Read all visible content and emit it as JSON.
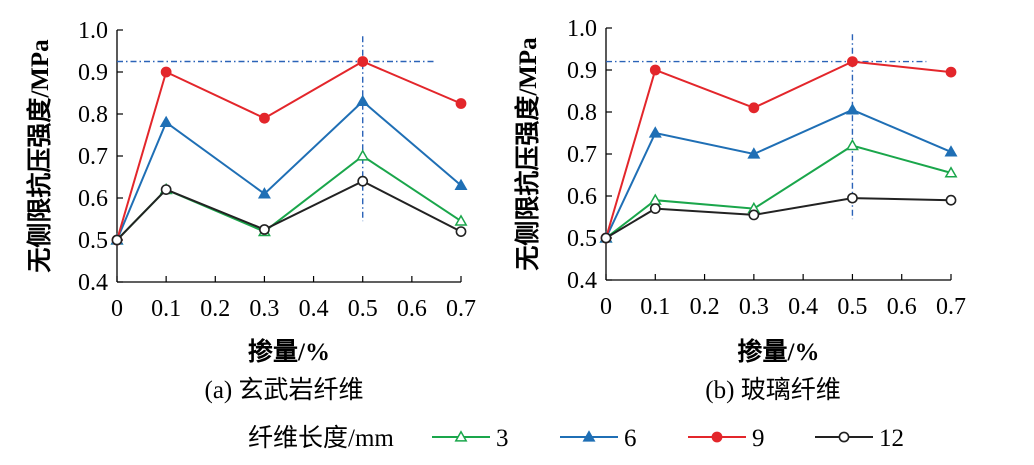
{
  "chart_data": [
    {
      "type": "line",
      "caption": "(a) 玄武岩纤维",
      "xlabel": "掺量/%",
      "ylabel": "无侧限抗压强度/MPa",
      "ylim": [
        0.4,
        1.0
      ],
      "x": [
        0,
        0.1,
        0.3,
        0.5,
        0.7
      ],
      "xticks": [
        "0",
        "0.1",
        "0.2",
        "0.3",
        "0.4",
        "0.5",
        "0.6",
        "0.7"
      ],
      "yticks": [
        "0.4",
        "0.5",
        "0.6",
        "0.7",
        "0.8",
        "0.9",
        "1.0"
      ],
      "ref_hline": 0.925,
      "ref_vline": 0.5,
      "series": [
        {
          "name": "3",
          "color": "#1aa64b",
          "marker": "triangle-open",
          "values": [
            0.5,
            0.62,
            0.52,
            0.7,
            0.545
          ]
        },
        {
          "name": "6",
          "color": "#1f6fb5",
          "marker": "triangle-filled",
          "values": [
            0.5,
            0.78,
            0.61,
            0.83,
            0.63
          ]
        },
        {
          "name": "9",
          "color": "#e3262b",
          "marker": "circle-filled",
          "values": [
            0.5,
            0.9,
            0.79,
            0.925,
            0.825
          ]
        },
        {
          "name": "12",
          "color": "#222222",
          "marker": "circle-open",
          "values": [
            0.5,
            0.62,
            0.525,
            0.64,
            0.52
          ]
        }
      ]
    },
    {
      "type": "line",
      "caption": "(b) 玻璃纤维",
      "xlabel": "掺量/%",
      "ylabel": "无侧限抗压强度/MPa",
      "ylim": [
        0.4,
        1.0
      ],
      "x": [
        0,
        0.1,
        0.3,
        0.5,
        0.7
      ],
      "xticks": [
        "0",
        "0.1",
        "0.2",
        "0.3",
        "0.4",
        "0.5",
        "0.6",
        "0.7"
      ],
      "yticks": [
        "0.4",
        "0.5",
        "0.6",
        "0.7",
        "0.8",
        "0.9",
        "1.0"
      ],
      "ref_hline": 0.92,
      "ref_vline": 0.5,
      "series": [
        {
          "name": "3",
          "color": "#1aa64b",
          "marker": "triangle-open",
          "values": [
            0.5,
            0.59,
            0.57,
            0.72,
            0.655
          ]
        },
        {
          "name": "6",
          "color": "#1f6fb5",
          "marker": "triangle-filled",
          "values": [
            0.5,
            0.75,
            0.7,
            0.805,
            0.705
          ]
        },
        {
          "name": "9",
          "color": "#e3262b",
          "marker": "circle-filled",
          "values": [
            0.5,
            0.9,
            0.81,
            0.92,
            0.895
          ]
        },
        {
          "name": "12",
          "color": "#222222",
          "marker": "circle-open",
          "values": [
            0.5,
            0.57,
            0.555,
            0.595,
            0.59
          ]
        }
      ]
    }
  ],
  "legend": {
    "title": "纤维长度/mm",
    "placement": "bottom",
    "entries": [
      "3",
      "6",
      "9",
      "12"
    ]
  },
  "colors": {
    "ref_line": "#2b63b8"
  }
}
